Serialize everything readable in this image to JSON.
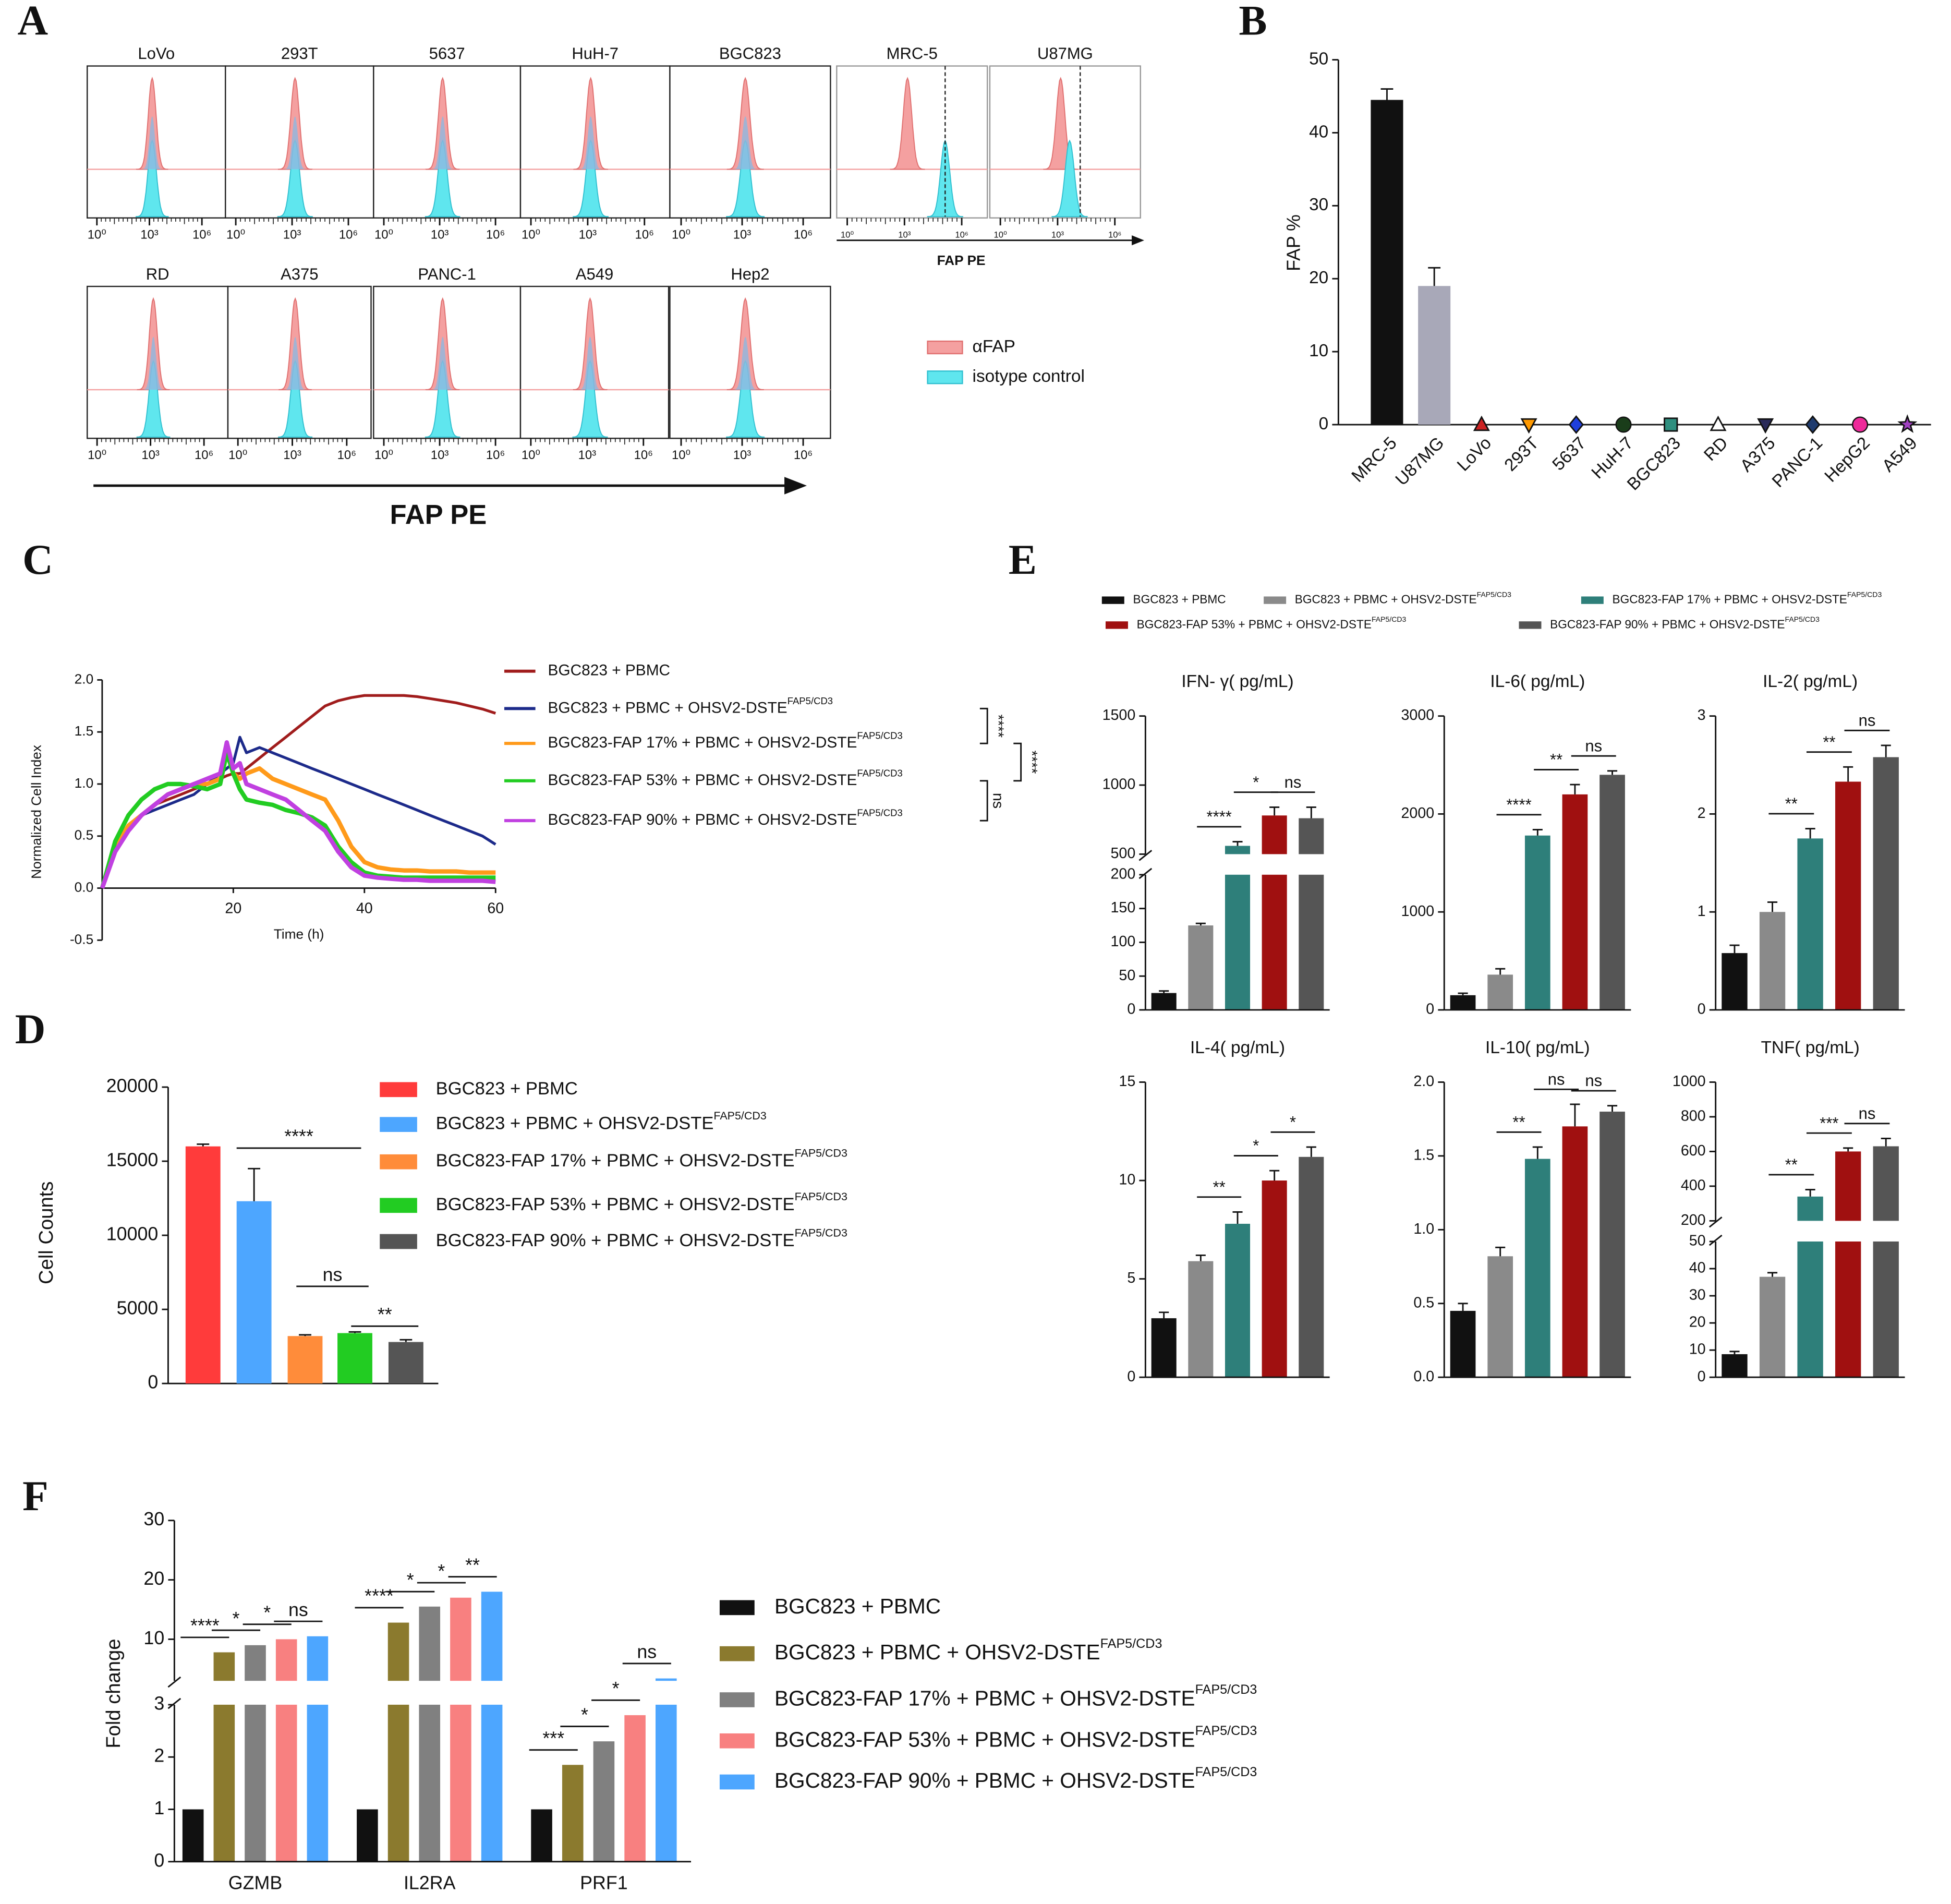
{
  "chart_data": [
    {
      "type": "histogram",
      "label": "A",
      "panels": [
        "LoVo",
        "293T",
        "5637",
        "HuH-7",
        "BGC823",
        "MRC-5",
        "U87MG",
        "RD",
        "A375",
        "PANC-1",
        "A549",
        "Hep2"
      ],
      "xscale": "log",
      "xticks": [
        {
          "value": 1,
          "label": "10⁰"
        },
        {
          "value": 1000,
          "label": "10³"
        },
        {
          "value": 1000000,
          "label": "10⁶"
        }
      ],
      "xlabel": "FAP PE",
      "legend": [
        {
          "name": "αFAP",
          "color": "#f4a0a0"
        },
        {
          "name": "isotype control",
          "color": "#5fe6ee"
        }
      ]
    },
    {
      "type": "bar",
      "label": "B",
      "ylabel": "FAP %",
      "categories": [
        "MRC-5",
        "U87MG",
        "LoVo",
        "293T",
        "5637",
        "HuH-7",
        "BGC823",
        "RD",
        "A375",
        "PANC-1",
        "HepG2",
        "A549"
      ],
      "values": [
        44.5,
        19,
        0,
        0,
        0,
        0,
        0,
        0,
        0,
        0,
        0,
        0
      ],
      "errors": [
        1.5,
        2.5,
        null,
        null,
        null,
        null,
        null,
        null,
        null,
        null,
        null,
        null
      ],
      "colors": [
        "#111111",
        "#a8a8b8",
        "#cc2222",
        "#ff9900",
        "#1f3fdc",
        "#1a3d1a",
        "#2f8f7f",
        "#ffffff",
        "#2a2a5a",
        "#1f3b6e",
        "#ee2a9a",
        "#a040c0"
      ],
      "markers": [
        "bar",
        "bar",
        "triangle-up",
        "triangle-down",
        "diamond",
        "circle",
        "square",
        "triangle-up",
        "triangle-down",
        "diamond",
        "circle",
        "star"
      ],
      "ylim": [
        0,
        50
      ],
      "yticks": [
        0,
        10,
        20,
        30,
        40,
        50
      ]
    },
    {
      "type": "line",
      "label": "C",
      "xlabel": "Time (h)",
      "ylabel": "Normalized Cell Index",
      "x": [
        0,
        2,
        4,
        6,
        8,
        10,
        12,
        14,
        16,
        18,
        19,
        20,
        21,
        22,
        24,
        26,
        28,
        30,
        32,
        34,
        36,
        38,
        40,
        42,
        44,
        46,
        48,
        50,
        52,
        54,
        56,
        58,
        60
      ],
      "xlim": [
        0,
        60
      ],
      "xticks": [
        20,
        40,
        60
      ],
      "ylim": [
        -0.5,
        2.0
      ],
      "yticks": [
        -0.5,
        {
          "value": 0,
          "label": "0.0"
        },
        0.5,
        {
          "value": 1,
          "label": "1.0"
        },
        1.5,
        {
          "value": 2,
          "label": "2.0"
        }
      ],
      "series": [
        {
          "name": "BGC823 + PBMC",
          "sup": "",
          "color": "#a01c1c",
          "values": [
            0,
            0.4,
            0.6,
            0.7,
            0.8,
            0.85,
            0.9,
            0.95,
            1.0,
            1.05,
            1.08,
            1.1,
            1.1,
            1.15,
            1.25,
            1.35,
            1.45,
            1.55,
            1.65,
            1.75,
            1.8,
            1.83,
            1.85,
            1.85,
            1.85,
            1.85,
            1.84,
            1.82,
            1.8,
            1.78,
            1.75,
            1.72,
            1.68
          ]
        },
        {
          "name": "BGC823 + PBMC + OHSV2-DSTE",
          "sup": "FAP5/CD3",
          "color": "#1c2a8a",
          "values": [
            0,
            0.35,
            0.55,
            0.7,
            0.75,
            0.8,
            0.85,
            0.9,
            1.0,
            1.1,
            1.15,
            1.2,
            1.45,
            1.3,
            1.35,
            1.3,
            1.25,
            1.2,
            1.15,
            1.1,
            1.05,
            1.0,
            0.95,
            0.9,
            0.85,
            0.8,
            0.75,
            0.7,
            0.65,
            0.6,
            0.55,
            0.5,
            0.42
          ]
        },
        {
          "name": "BGC823-FAP 17% + PBMC + OHSV2-DSTE",
          "sup": "FAP5/CD3",
          "color": "#ff9a1a",
          "values": [
            0,
            0.4,
            0.6,
            0.7,
            0.8,
            0.9,
            0.95,
            1.0,
            1.0,
            1.05,
            1.35,
            1.1,
            1.05,
            1.1,
            1.15,
            1.05,
            1.0,
            0.95,
            0.9,
            0.85,
            0.65,
            0.4,
            0.25,
            0.2,
            0.18,
            0.17,
            0.17,
            0.16,
            0.16,
            0.16,
            0.15,
            0.15,
            0.15
          ]
        },
        {
          "name": "BGC823-FAP 53% + PBMC + OHSV2-DSTE",
          "sup": "FAP5/CD3",
          "color": "#22cc22",
          "values": [
            0,
            0.45,
            0.7,
            0.85,
            0.95,
            1.0,
            1.0,
            0.98,
            0.95,
            1.0,
            1.3,
            1.1,
            0.95,
            0.85,
            0.82,
            0.8,
            0.75,
            0.72,
            0.68,
            0.6,
            0.4,
            0.25,
            0.15,
            0.12,
            0.11,
            0.1,
            0.1,
            0.1,
            0.1,
            0.1,
            0.1,
            0.1,
            0.1
          ]
        },
        {
          "name": "BGC823-FAP 90% + PBMC + OHSV2-DSTE",
          "sup": "FAP5/CD3",
          "color": "#c040e0",
          "values": [
            0,
            0.35,
            0.55,
            0.7,
            0.8,
            0.9,
            0.95,
            1.0,
            1.05,
            1.1,
            1.4,
            1.15,
            1.2,
            1.0,
            0.95,
            0.9,
            0.85,
            0.75,
            0.65,
            0.55,
            0.35,
            0.2,
            0.12,
            0.1,
            0.09,
            0.08,
            0.08,
            0.07,
            0.07,
            0.07,
            0.07,
            0.07,
            0.06
          ]
        }
      ],
      "annotations": [
        "****",
        "****",
        "ns"
      ]
    },
    {
      "type": "bar",
      "label": "D",
      "ylabel": "Cell Counts",
      "ylim": [
        0,
        20000
      ],
      "yticks": [
        0,
        5000,
        10000,
        15000,
        20000
      ],
      "series": [
        {
          "name": "BGC823 + PBMC",
          "sup": "",
          "color": "#ff3b3b",
          "value": 16000,
          "error": 150
        },
        {
          "name": "BGC823 + PBMC + OHSV2-DSTE",
          "sup": "FAP5/CD3",
          "color": "#4da6ff",
          "value": 12300,
          "error": 2200
        },
        {
          "name": "BGC823-FAP 17% + PBMC + OHSV2-DSTE",
          "sup": "FAP5/CD3",
          "color": "#ff8c3a",
          "value": 3200,
          "error": 80
        },
        {
          "name": "BGC823-FAP 53% + PBMC + OHSV2-DSTE",
          "sup": "FAP5/CD3",
          "color": "#22cc22",
          "value": 3400,
          "error": 80
        },
        {
          "name": "BGC823-FAP 90% + PBMC + OHSV2-DSTE",
          "sup": "FAP5/CD3",
          "color": "#555555",
          "value": 2800,
          "error": 150
        }
      ],
      "annotations": [
        "****",
        "ns",
        "**"
      ]
    },
    {
      "type": "bar",
      "label": "E",
      "series": [
        {
          "name": "BGC823 + PBMC",
          "sup": "",
          "color": "#111111"
        },
        {
          "name": "BGC823 + PBMC + OHSV2-DSTE",
          "sup": "FAP5/CD3",
          "color": "#8a8a8a"
        },
        {
          "name": "BGC823-FAP 17% + PBMC + OHSV2-DSTE",
          "sup": "FAP5/CD3",
          "color": "#2e7f7a"
        },
        {
          "name": "BGC823-FAP 53% + PBMC + OHSV2-DSTE",
          "sup": "FAP5/CD3",
          "color": "#a01010"
        },
        {
          "name": "BGC823-FAP 90% + PBMC + OHSV2-DSTE",
          "sup": "FAP5/CD3",
          "color": "#555555"
        }
      ],
      "panels": [
        {
          "title": "IFN- γ( pg/mL)",
          "values": [
            25,
            125,
            560,
            780,
            760
          ],
          "errors": [
            3,
            3,
            30,
            60,
            80
          ],
          "ylim": [
            0,
            1500
          ],
          "ybreak": [
            200,
            500
          ],
          "yticks": [
            0,
            50,
            100,
            150,
            200,
            500,
            1000,
            1500
          ],
          "annotations": [
            "****",
            "*",
            "ns"
          ]
        },
        {
          "title": "IL-6( pg/mL)",
          "values": [
            150,
            360,
            1780,
            2200,
            2400
          ],
          "errors": [
            20,
            60,
            60,
            100,
            40
          ],
          "ylim": [
            0,
            3000
          ],
          "yticks": [
            0,
            1000,
            2000,
            3000
          ],
          "annotations": [
            "****",
            "**",
            "ns"
          ]
        },
        {
          "title": "IL-2( pg/mL)",
          "values": [
            0.58,
            1.0,
            1.75,
            2.33,
            2.58
          ],
          "errors": [
            0.08,
            0.1,
            0.1,
            0.15,
            0.12
          ],
          "ylim": [
            0,
            3
          ],
          "yticks": [
            0,
            1,
            2,
            3
          ],
          "annotations": [
            "**",
            "**",
            "ns"
          ]
        },
        {
          "title": "IL-4( pg/mL)",
          "values": [
            3.0,
            5.9,
            7.8,
            10.0,
            11.2
          ],
          "errors": [
            0.3,
            0.3,
            0.6,
            0.5,
            0.5
          ],
          "ylim": [
            0,
            15
          ],
          "yticks": [
            0,
            5,
            10,
            15
          ],
          "annotations": [
            "**",
            "*",
            "*"
          ]
        },
        {
          "title": "IL-10( pg/mL)",
          "values": [
            0.45,
            0.82,
            1.48,
            1.7,
            1.8
          ],
          "errors": [
            0.05,
            0.06,
            0.08,
            0.15,
            0.04
          ],
          "ylim": [
            0,
            2
          ],
          "yticks": [
            {
              "value": 0,
              "label": "0.0"
            },
            0.5,
            {
              "value": 1,
              "label": "1.0"
            },
            1.5,
            {
              "value": 2,
              "label": "2.0"
            }
          ],
          "annotations": [
            "**",
            "ns",
            "ns"
          ]
        },
        {
          "title": "TNF( pg/mL)",
          "values": [
            8.5,
            37,
            340,
            600,
            630
          ],
          "errors": [
            1,
            1.5,
            40,
            20,
            45
          ],
          "ylim": [
            0,
            1000
          ],
          "ybreak": [
            50,
            200
          ],
          "yticks": [
            0,
            10,
            20,
            30,
            40,
            50,
            200,
            400,
            600,
            800,
            1000
          ],
          "annotations": [
            "**",
            "***",
            "ns"
          ]
        }
      ]
    },
    {
      "type": "bar",
      "label": "F",
      "ylabel": "Fold change",
      "categories": [
        "GZMB",
        "IL2RA",
        "PRF1"
      ],
      "ylim": [
        0,
        30
      ],
      "ybreak": [
        3,
        3
      ],
      "yticks": [
        0,
        1,
        2,
        3,
        10,
        20,
        30
      ],
      "series": [
        {
          "name": "BGC823 + PBMC",
          "sup": "",
          "color": "#111111",
          "values": [
            1,
            1,
            1
          ]
        },
        {
          "name": "BGC823 + PBMC + OHSV2-DSTE",
          "sup": "FAP5/CD3",
          "color": "#8b7a2e",
          "values": [
            7.8,
            12.8,
            1.85
          ]
        },
        {
          "name": "BGC823-FAP 17% + PBMC + OHSV2-DSTE",
          "sup": "FAP5/CD3",
          "color": "#808080",
          "values": [
            9.0,
            15.5,
            2.3
          ]
        },
        {
          "name": "BGC823-FAP 53% + PBMC + OHSV2-DSTE",
          "sup": "FAP5/CD3",
          "color": "#f88080",
          "values": [
            10.0,
            17.0,
            2.8
          ]
        },
        {
          "name": "BGC823-FAP 90% + PBMC + OHSV2-DSTE",
          "sup": "FAP5/CD3",
          "color": "#4da6ff",
          "values": [
            10.5,
            18.0,
            3.4
          ]
        }
      ],
      "annotations": [
        [
          "****",
          "*",
          "*",
          "ns"
        ],
        [
          "****",
          "*",
          "*",
          "**"
        ],
        [
          "***",
          "*",
          "*",
          "ns"
        ]
      ]
    }
  ]
}
